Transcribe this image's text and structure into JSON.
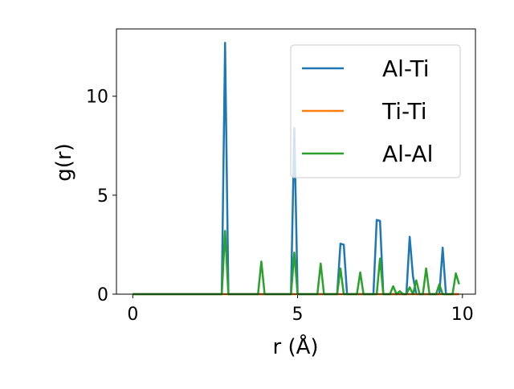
{
  "chart_data": {
    "type": "line",
    "xlabel": "r (Å)",
    "ylabel": "g(r)",
    "x": [
      0,
      2.7,
      2.8,
      2.9,
      3.8,
      3.9,
      4.0,
      4.8,
      4.9,
      5.0,
      5.6,
      5.7,
      5.8,
      6.2,
      6.3,
      6.4,
      6.5,
      6.8,
      6.9,
      7.0,
      7.3,
      7.4,
      7.5,
      7.6,
      7.8,
      7.9,
      8.0,
      8.1,
      8.2,
      8.3,
      8.4,
      8.5,
      8.6,
      8.7,
      8.8,
      8.9,
      9.0,
      9.2,
      9.3,
      9.4,
      9.5,
      9.7,
      9.8,
      9.9
    ],
    "series": [
      {
        "name": "Al-Ti",
        "color": "#1f77b4",
        "values": [
          0,
          0,
          12.7,
          0,
          0,
          0,
          0,
          0,
          8.4,
          0,
          0,
          0,
          0,
          0,
          2.55,
          2.5,
          0,
          0,
          0,
          0,
          0,
          3.75,
          3.7,
          0,
          0,
          0,
          0,
          0,
          0,
          0,
          2.9,
          0.9,
          0,
          0,
          0,
          0,
          0,
          0,
          0,
          2.35,
          0,
          0,
          0,
          0
        ]
      },
      {
        "name": "Ti-Ti",
        "color": "#ff7f0e",
        "values": [
          0,
          0,
          0,
          0,
          0,
          0,
          0,
          0,
          0,
          0,
          0,
          0,
          0,
          0,
          0,
          0,
          0,
          0,
          0,
          0,
          0,
          0,
          0,
          0,
          0,
          0,
          0,
          0,
          0,
          0,
          0,
          0,
          0,
          0,
          0,
          0,
          0,
          0,
          0,
          0,
          0,
          0,
          0,
          0
        ]
      },
      {
        "name": "Al-Al",
        "color": "#2ca02c",
        "values": [
          0,
          0,
          3.2,
          0,
          0,
          1.65,
          0,
          0,
          2.1,
          0,
          0,
          1.55,
          0,
          0,
          1.3,
          0,
          0,
          0,
          1.1,
          0,
          0,
          0,
          1.8,
          0,
          0,
          0.4,
          0,
          0.15,
          0,
          0,
          0.35,
          0,
          0.7,
          0,
          0,
          1.3,
          0,
          0,
          0.5,
          0,
          0,
          0,
          1.05,
          0.5
        ]
      }
    ],
    "xlim": [
      -0.495,
      10.395
    ],
    "ylim": [
      0,
      13.4
    ],
    "xticks": [
      0,
      5,
      10
    ],
    "yticks": [
      0,
      5,
      10
    ],
    "legend": "upper right"
  }
}
